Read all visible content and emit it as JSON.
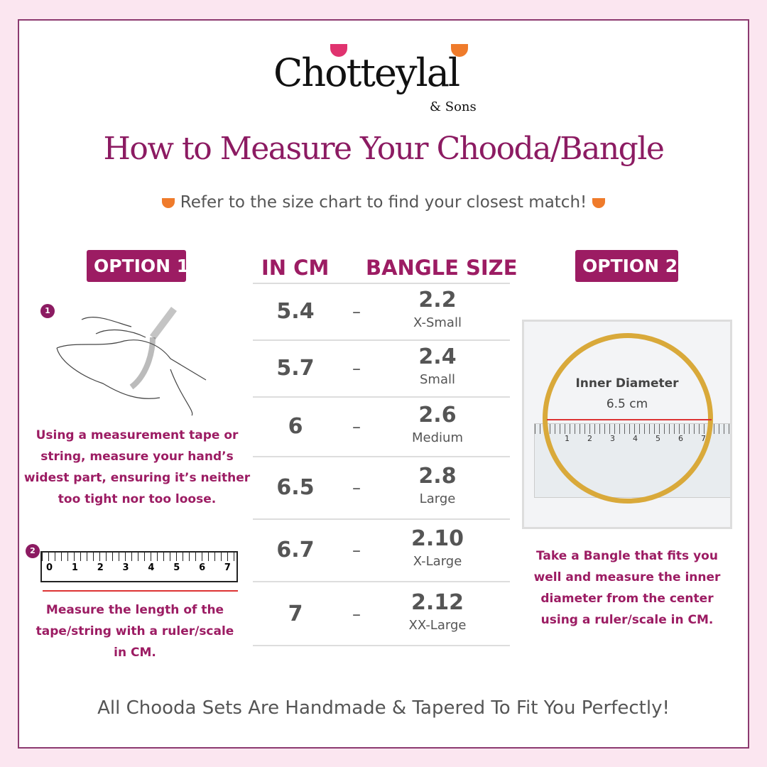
{
  "brand": {
    "name": "Chotteylal",
    "suffix": "& Sons"
  },
  "title": "How to Measure Your Chooda/Bangle",
  "subtitle": "Refer to the size chart to find your closest match!",
  "option1": {
    "label": "OPTION 1",
    "step1_number": "1",
    "step1_text": "Using a measurement tape or string, measure your hand’s widest part, ensuring it’s neither too tight nor too loose.",
    "step2_number": "2",
    "ruler_numbers": [
      "0",
      "1",
      "2",
      "3",
      "4",
      "5",
      "6",
      "7"
    ],
    "step2_text": "Measure the length of the tape/string with a ruler/scale in CM."
  },
  "table": {
    "col1": "IN CM",
    "col2": "BANGLE SIZE",
    "rows": [
      {
        "cm": "5.4",
        "size": "2.2",
        "name": "X-Small"
      },
      {
        "cm": "5.7",
        "size": "2.4",
        "name": "Small"
      },
      {
        "cm": "6",
        "size": "2.6",
        "name": "Medium"
      },
      {
        "cm": "6.5",
        "size": "2.8",
        "name": "Large"
      },
      {
        "cm": "6.7",
        "size": "2.10",
        "name": "X-Large"
      },
      {
        "cm": "7",
        "size": "2.12",
        "name": "XX-Large"
      }
    ]
  },
  "option2": {
    "label": "OPTION 2",
    "photo_label": "Inner Diameter",
    "photo_value": "6.5 cm",
    "photo_ruler": [
      "1",
      "2",
      "3",
      "4",
      "5",
      "6",
      "7"
    ],
    "text": "Take a Bangle that fits you well and measure the inner diameter from the center using a ruler/scale in CM."
  },
  "footer": "All Chooda Sets Are Handmade & Tapered To Fit You Perfectly!",
  "colors": {
    "accent": "#9c1c63",
    "background": "#fbe6f0",
    "lotus_pink": "#e0336f",
    "lotus_orange": "#ef7b2b"
  }
}
